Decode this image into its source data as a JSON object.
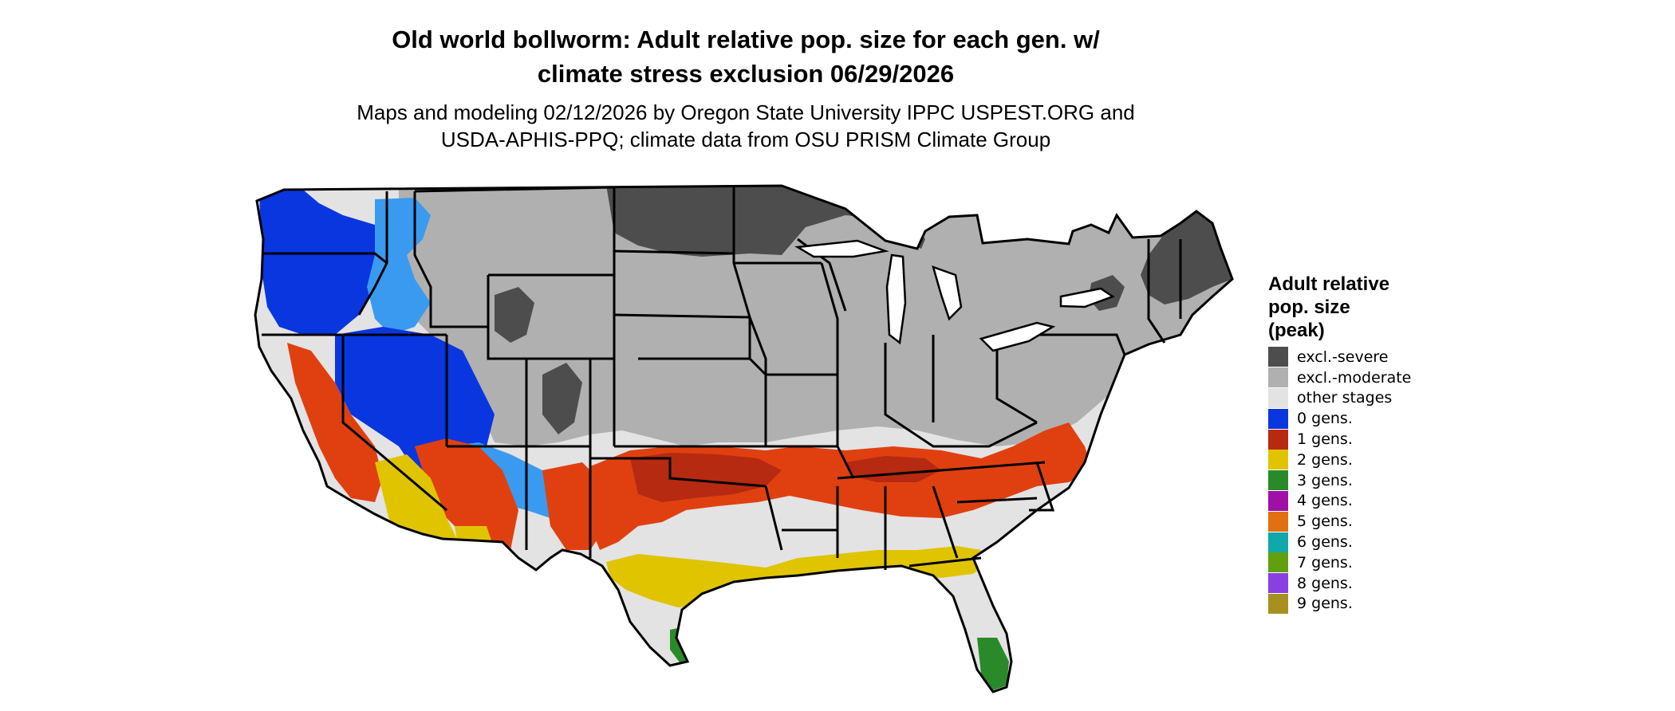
{
  "title": {
    "line1": "Old world bollworm: Adult relative pop. size for each gen. w/",
    "line2": "climate stress exclusion 06/29/2026"
  },
  "subtitle": {
    "line1": "Maps and modeling 02/12/2026 by Oregon State University IPPC USPEST.ORG and",
    "line2": "USDA-APHIS-PPQ; climate data from OSU PRISM Climate Group"
  },
  "legend": {
    "title_lines": [
      "Adult relative",
      "pop. size",
      "(peak)"
    ],
    "items": [
      {
        "label": "excl.-severe",
        "color": "#4d4d4d"
      },
      {
        "label": "excl.-moderate",
        "color": "#b0b0b0"
      },
      {
        "label": "other stages",
        "color": "#e3e3e3"
      },
      {
        "label": "0 gens.",
        "color": "#0a36e0"
      },
      {
        "label": "1 gens.",
        "color": "#b52a10"
      },
      {
        "label": "2 gens.",
        "color": "#e0c400"
      },
      {
        "label": "3 gens.",
        "color": "#2a8a2a"
      },
      {
        "label": "4 gens.",
        "color": "#a010a8"
      },
      {
        "label": "5 gens.",
        "color": "#e07010"
      },
      {
        "label": "6 gens.",
        "color": "#10a8a8"
      },
      {
        "label": "7 gens.",
        "color": "#60a010"
      },
      {
        "label": "8 gens.",
        "color": "#8a40e0"
      },
      {
        "label": "9 gens.",
        "color": "#a89020"
      }
    ]
  },
  "colors": {
    "excl_severe": "#4d4d4d",
    "excl_moderate": "#b0b0b0",
    "other_stages": "#e3e3e3",
    "gen0": "#0a36e0",
    "gen0_light": "#3a9af0",
    "gen1": "#e04010",
    "gen1_dark": "#b52a10",
    "gen2": "#e0c400",
    "gen3": "#2a8a2a",
    "border": "#000000"
  }
}
